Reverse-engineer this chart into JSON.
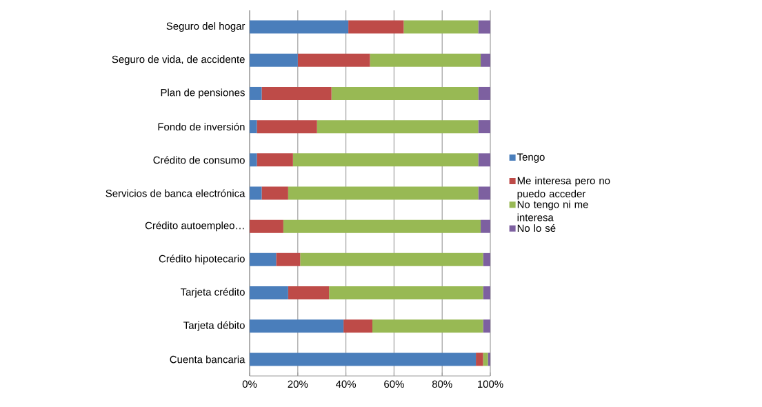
{
  "chart_data": {
    "type": "bar",
    "orientation": "horizontal",
    "stacked": true,
    "categories": [
      "Seguro del hogar",
      "Seguro de vida, de accidente",
      "Plan de pensiones",
      "Fondo de inversión",
      "Crédito de consumo",
      "Servicios de banca electrónica",
      "Crédito autoempleo…",
      "Crédito hipotecario",
      "Tarjeta crédito",
      "Tarjeta débito",
      "Cuenta bancaria"
    ],
    "series": [
      {
        "name": "Tengo",
        "color": "#4a7ebb",
        "values": [
          41,
          20,
          5,
          3,
          3,
          5,
          0,
          11,
          16,
          39,
          94
        ]
      },
      {
        "name": "Me interesa pero no puedo acceder",
        "color": "#be4b48",
        "values": [
          23,
          30,
          29,
          25,
          15,
          11,
          14,
          10,
          17,
          12,
          3
        ]
      },
      {
        "name": "No tengo ni me interesa",
        "color": "#98b954",
        "values": [
          31,
          46,
          61,
          67,
          77,
          79,
          82,
          76,
          64,
          46,
          2
        ]
      },
      {
        "name": "No lo sé",
        "color": "#7d60a0",
        "values": [
          5,
          4,
          5,
          5,
          5,
          5,
          4,
          3,
          3,
          3,
          1
        ]
      }
    ],
    "xlim": [
      0,
      100
    ],
    "xticks": [
      {
        "value": 0,
        "label": "0%"
      },
      {
        "value": 20,
        "label": "20%"
      },
      {
        "value": 40,
        "label": "40%"
      },
      {
        "value": 60,
        "label": "60%"
      },
      {
        "value": 80,
        "label": "80%"
      },
      {
        "value": 100,
        "label": "100%"
      }
    ],
    "grid": "x",
    "legend": "right"
  }
}
